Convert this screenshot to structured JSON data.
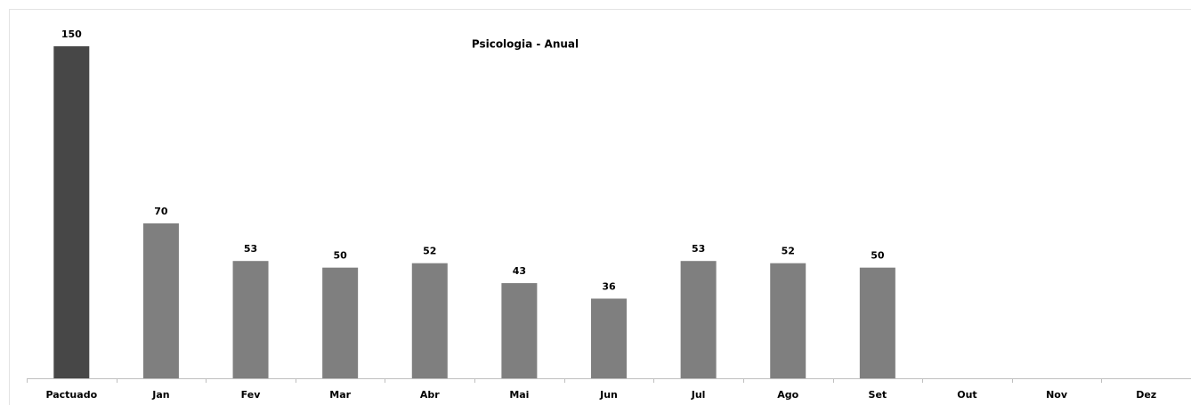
{
  "chart_data": {
    "type": "bar",
    "title": "Psicologia - Anual",
    "categories": [
      "Pactuado",
      "Jan",
      "Fev",
      "Mar",
      "Abr",
      "Mai",
      "Jun",
      "Jul",
      "Ago",
      "Set",
      "Out",
      "Nov",
      "Dez"
    ],
    "values": [
      150,
      70,
      53,
      50,
      52,
      43,
      36,
      53,
      52,
      50,
      null,
      null,
      null
    ],
    "colors": [
      "#474747",
      "#7f7f7f",
      "#7f7f7f",
      "#7f7f7f",
      "#7f7f7f",
      "#7f7f7f",
      "#7f7f7f",
      "#7f7f7f",
      "#7f7f7f",
      "#7f7f7f",
      "#7f7f7f",
      "#7f7f7f",
      "#7f7f7f"
    ],
    "grid": false
  }
}
